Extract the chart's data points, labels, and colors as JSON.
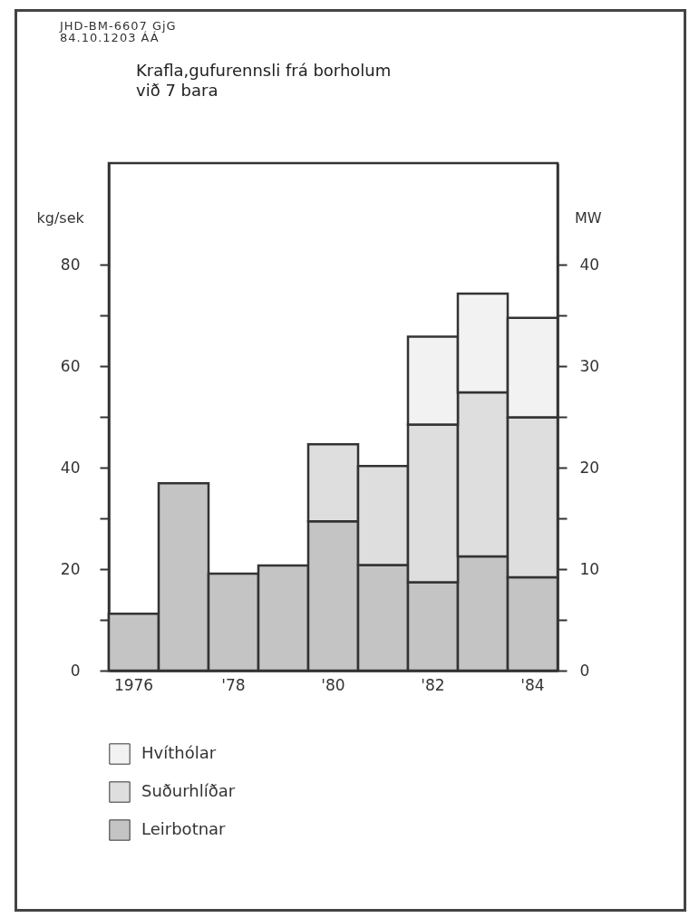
{
  "chart_data": {
    "type": "bar",
    "stacked": true,
    "title": "Krafla,gufurennsli frá borholum",
    "subtitle": "við 7 bara",
    "annotations": [
      "JHD-BM-6607 GjG",
      "84.10.1203 ÁÁ"
    ],
    "ylabel": "kg/sek",
    "y2label": "MW",
    "categories": [
      "1976",
      null,
      "'78",
      null,
      "'80",
      null,
      "'82",
      null,
      "'84"
    ],
    "series": [
      {
        "name": "Leirbotnar",
        "color": "#c4c4c4",
        "values": [
          11.2,
          36.9,
          19.1,
          20.7,
          29.4,
          20.8,
          17.4,
          22.5,
          18.4
        ]
      },
      {
        "name": "Suðurhlíðar",
        "color": "#dedede",
        "values": [
          null,
          null,
          null,
          null,
          15.2,
          19.5,
          31.1,
          32.3,
          31.5
        ]
      },
      {
        "name": "Hvíthólar",
        "color": "#f2f2f2",
        "values": [
          null,
          null,
          null,
          null,
          null,
          null,
          17.3,
          19.5,
          19.6
        ]
      }
    ],
    "ylim": [
      0,
      100
    ],
    "yticks": [
      0,
      {
        "value": 10,
        "label": null
      },
      20,
      {
        "value": 30,
        "label": null
      },
      40,
      {
        "value": 50,
        "label": null
      },
      60,
      {
        "value": 70,
        "label": null
      },
      80
    ],
    "y2lim": [
      0,
      50
    ],
    "y2ticks": [
      0,
      {
        "value": 5,
        "label": null
      },
      10,
      {
        "value": 15,
        "label": null
      },
      20,
      {
        "value": 25,
        "label": null
      },
      30,
      {
        "value": 35,
        "label": null
      },
      40
    ],
    "grid": false,
    "legend": "bottom"
  }
}
